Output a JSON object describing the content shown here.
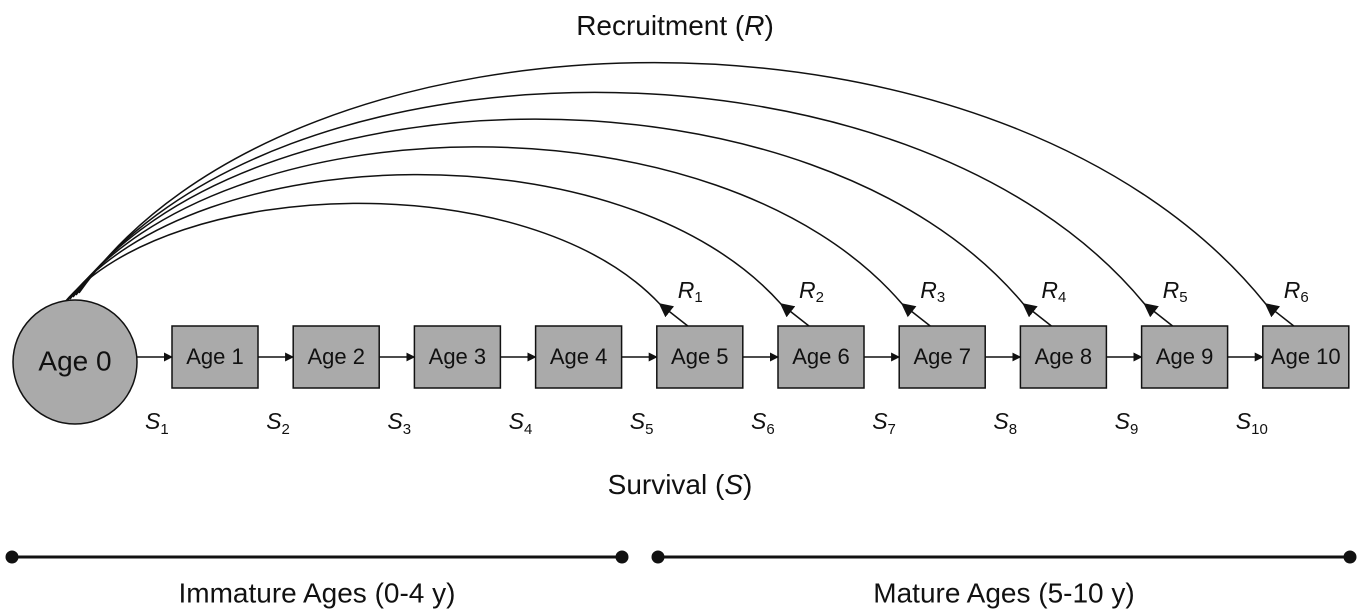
{
  "recruitment_label": {
    "prefix": "Recruitment (",
    "symbol": "R",
    "suffix": ")"
  },
  "survival_label": {
    "prefix": "Survival (",
    "symbol": "S",
    "suffix": ")"
  },
  "nodes": [
    {
      "label": "Age 0"
    },
    {
      "label": "Age 1"
    },
    {
      "label": "Age 2"
    },
    {
      "label": "Age 3"
    },
    {
      "label": "Age 4"
    },
    {
      "label": "Age 5"
    },
    {
      "label": "Age 6"
    },
    {
      "label": "Age 7"
    },
    {
      "label": "Age 8"
    },
    {
      "label": "Age 9"
    },
    {
      "label": "Age 10"
    }
  ],
  "survival_rates": [
    {
      "symbol": "S",
      "subscript": "1"
    },
    {
      "symbol": "S",
      "subscript": "2"
    },
    {
      "symbol": "S",
      "subscript": "3"
    },
    {
      "symbol": "S",
      "subscript": "4"
    },
    {
      "symbol": "S",
      "subscript": "5"
    },
    {
      "symbol": "S",
      "subscript": "6"
    },
    {
      "symbol": "S",
      "subscript": "7"
    },
    {
      "symbol": "S",
      "subscript": "8"
    },
    {
      "symbol": "S",
      "subscript": "9"
    },
    {
      "symbol": "S",
      "subscript": "10"
    }
  ],
  "recruitment_rates": [
    {
      "symbol": "R",
      "subscript": "1"
    },
    {
      "symbol": "R",
      "subscript": "2"
    },
    {
      "symbol": "R",
      "subscript": "3"
    },
    {
      "symbol": "R",
      "subscript": "4"
    },
    {
      "symbol": "R",
      "subscript": "5"
    },
    {
      "symbol": "R",
      "subscript": "6"
    }
  ],
  "stages": [
    {
      "label": "Immature Ages (0-4 y)"
    },
    {
      "label": "Mature Ages (5-10 y)"
    }
  ]
}
